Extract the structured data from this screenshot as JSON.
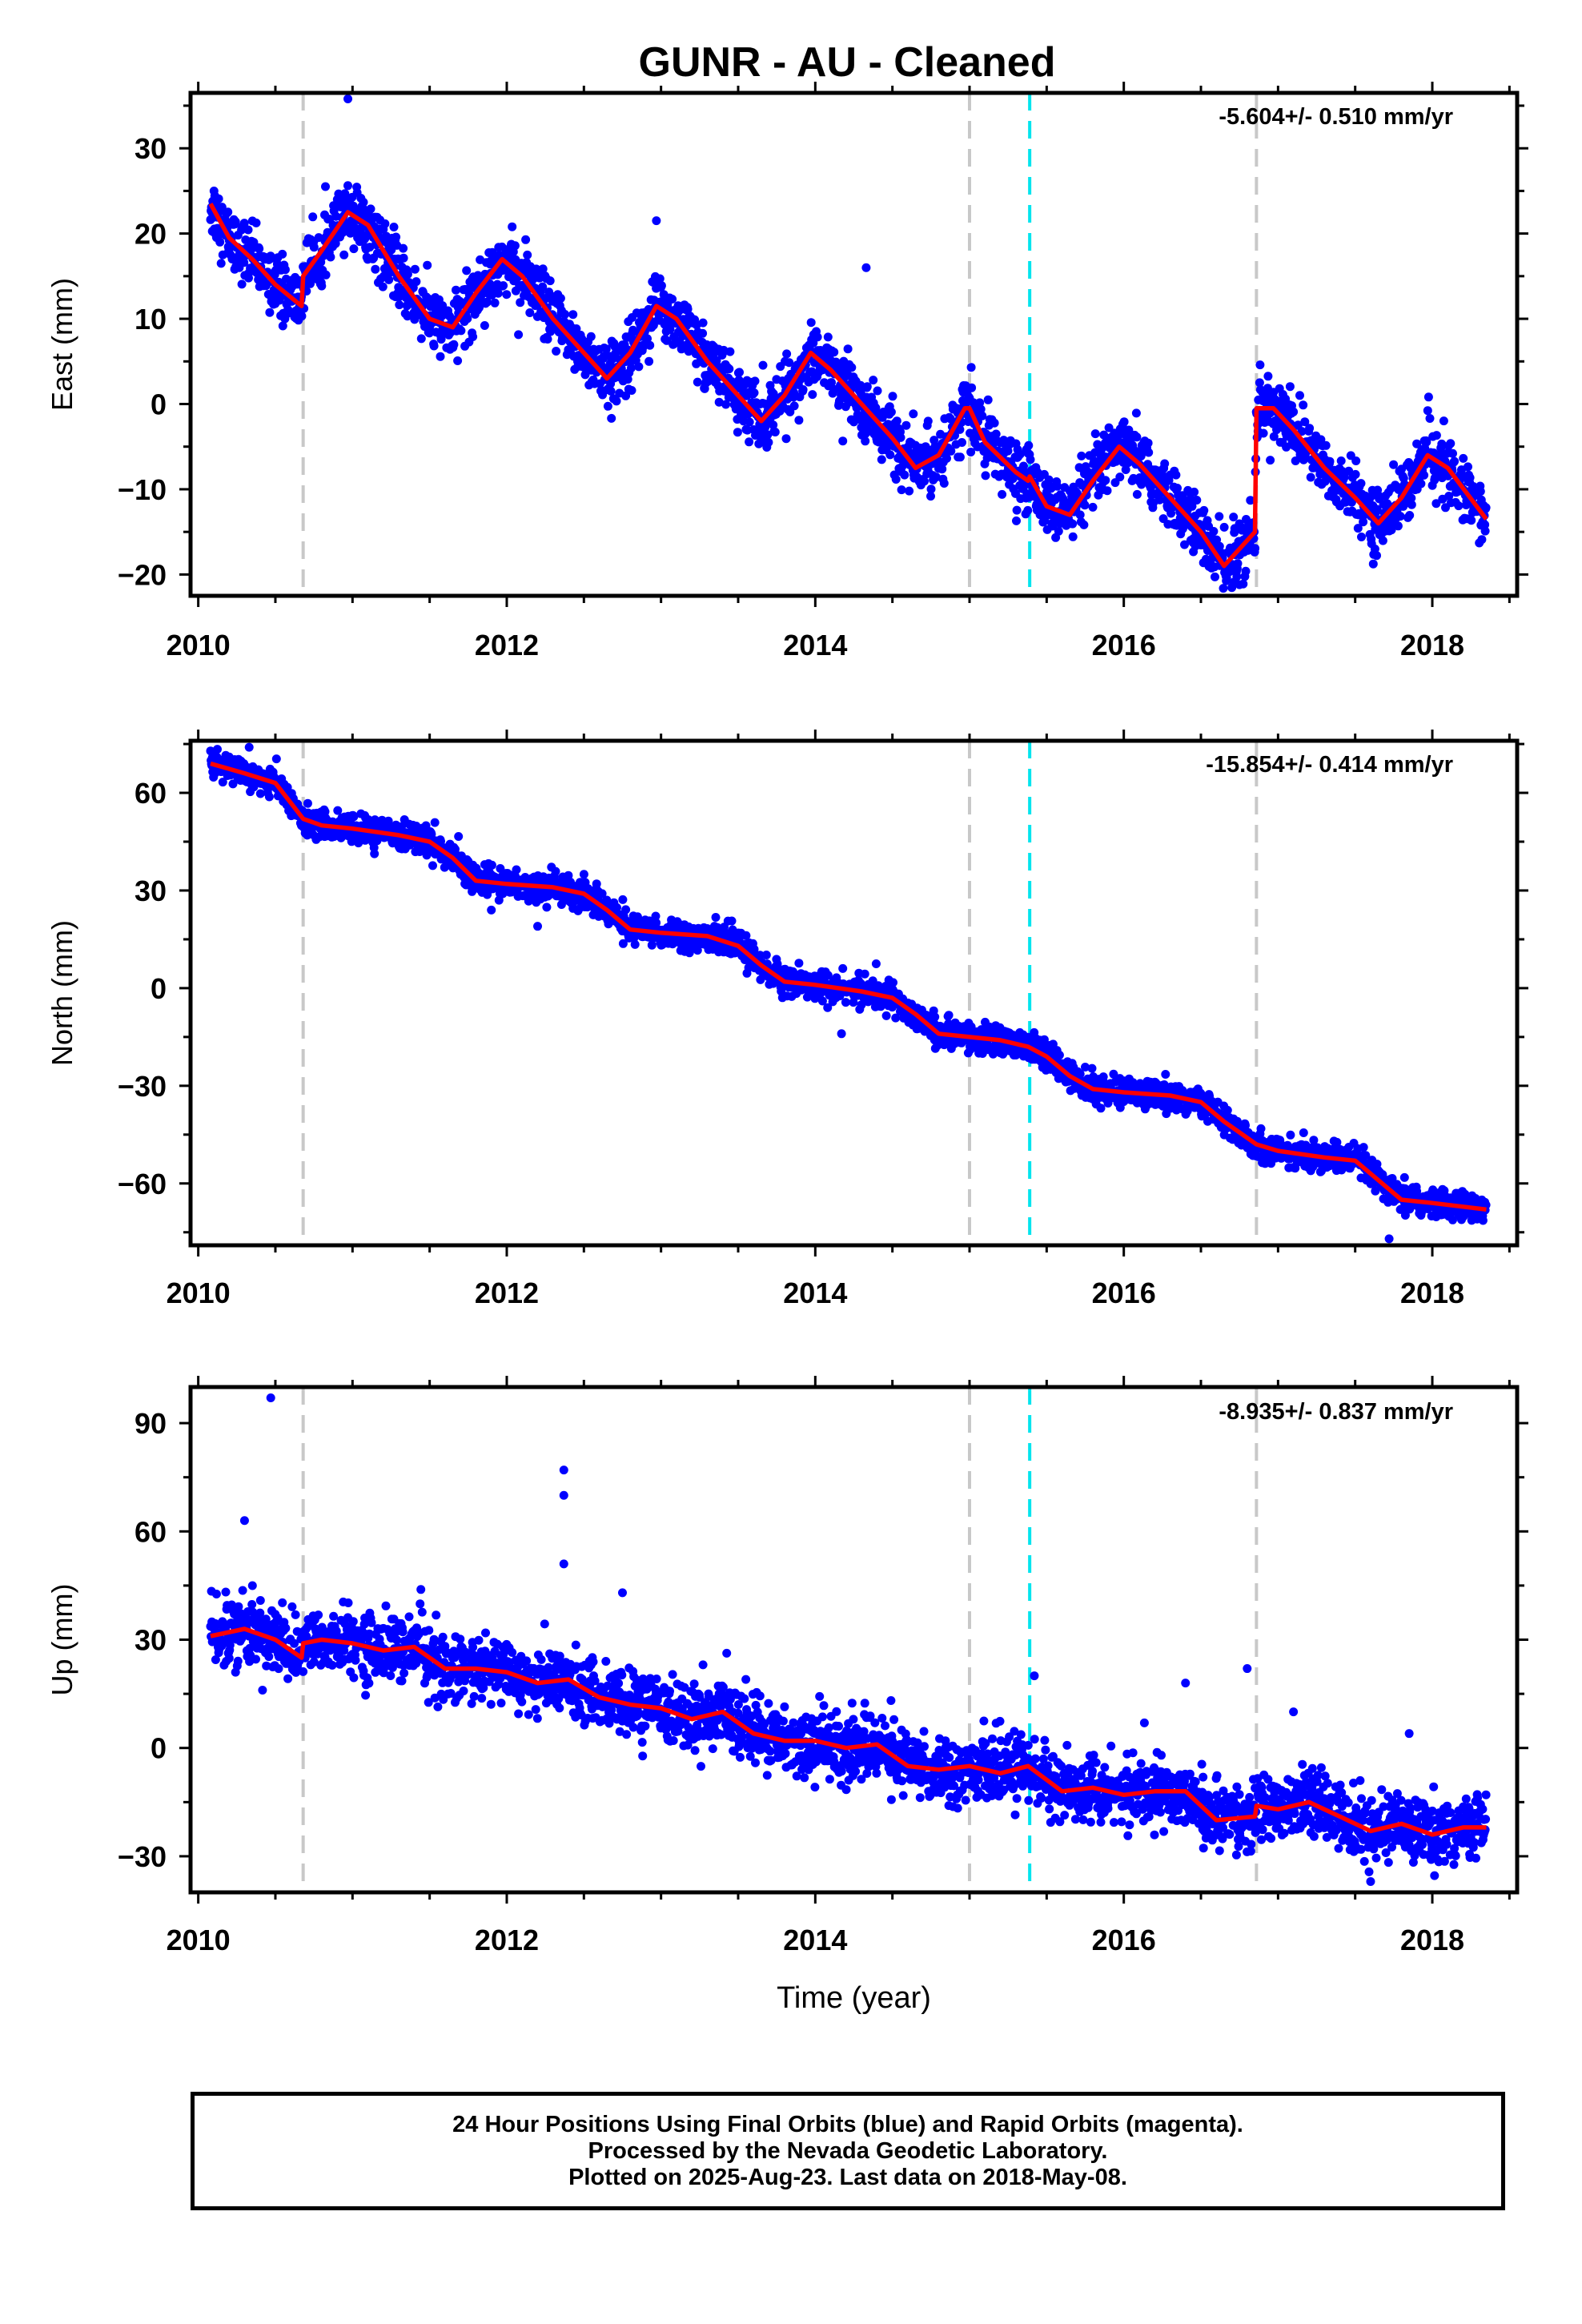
{
  "title": "GUNR  - AU - Cleaned",
  "chart_data": [
    {
      "type": "scatter",
      "panel": "east",
      "ylabel": "East (mm)",
      "xlabel": "",
      "rate_label": "-5.604+/- 0.510 mm/yr",
      "xlim": [
        2009.95,
        2018.55
      ],
      "ylim": [
        -22.5,
        36.5
      ],
      "yticks": [
        -20,
        -10,
        0,
        10,
        20,
        30
      ],
      "ytick_labels": [
        "−20",
        "−10",
        "0",
        "10",
        "20",
        "30"
      ],
      "xticks": [
        2010,
        2012,
        2014,
        2016,
        2018
      ],
      "xtick_labels": [
        "2010",
        "2012",
        "2014",
        "2016",
        "2018"
      ],
      "gray_dashed_lines": [
        2010.68,
        2015.0,
        2016.86
      ],
      "cyan_dashed_lines": [
        2015.39
      ],
      "trend_model": {
        "name": "model",
        "color": "#ff0000",
        "x": [
          2010.08,
          2010.2,
          2010.35,
          2010.5,
          2010.67,
          2010.68,
          2010.8,
          2010.97,
          2011.1,
          2011.3,
          2011.5,
          2011.65,
          2011.8,
          2011.97,
          2012.1,
          2012.3,
          2012.5,
          2012.65,
          2012.8,
          2012.97,
          2013.1,
          2013.3,
          2013.5,
          2013.65,
          2013.8,
          2013.97,
          2014.1,
          2014.3,
          2014.5,
          2014.65,
          2014.8,
          2014.97,
          2015.0,
          2015.1,
          2015.3,
          2015.38,
          2015.39,
          2015.5,
          2015.65,
          2015.8,
          2015.97,
          2016.1,
          2016.3,
          2016.5,
          2016.65,
          2016.85,
          2016.86,
          2016.97,
          2017.1,
          2017.3,
          2017.5,
          2017.65,
          2017.8,
          2017.97,
          2018.1,
          2018.35
        ],
        "y": [
          23.5,
          19.5,
          17,
          14,
          11.5,
          15,
          18,
          22.5,
          21,
          15,
          10,
          9,
          13,
          17,
          15,
          10,
          6,
          3,
          6,
          11.5,
          10,
          5,
          1,
          -2,
          1,
          6,
          4,
          0,
          -4,
          -7.5,
          -6,
          -0.5,
          -0.5,
          -4.5,
          -8,
          -9,
          -8.5,
          -12,
          -13,
          -9,
          -5,
          -7,
          -11,
          -15,
          -19,
          -15,
          -0.5,
          -0.5,
          -3,
          -7.5,
          -11,
          -14,
          -11,
          -6,
          -7.5,
          -13.5
        ]
      },
      "observations": {
        "name": "24 hour positions",
        "color": "#0000ff",
        "outliers": [
          [
            2010.97,
            35.8
          ],
          [
            2012.97,
            21.5
          ],
          [
            2014.33,
            16
          ],
          [
            2016.75,
            -21.2
          ]
        ]
      }
    },
    {
      "type": "scatter",
      "panel": "north",
      "ylabel": "North (mm)",
      "xlabel": "",
      "rate_label": "-15.854+/- 0.414 mm/yr",
      "xlim": [
        2009.95,
        2018.55
      ],
      "ylim": [
        -79,
        76
      ],
      "yticks": [
        -60,
        -30,
        0,
        30,
        60
      ],
      "ytick_labels": [
        "−60",
        "−30",
        "0",
        "30",
        "60"
      ],
      "xticks": [
        2010,
        2012,
        2014,
        2016,
        2018
      ],
      "xtick_labels": [
        "2010",
        "2012",
        "2014",
        "2016",
        "2018"
      ],
      "gray_dashed_lines": [
        2010.68,
        2015.0,
        2016.86
      ],
      "cyan_dashed_lines": [
        2015.39
      ],
      "trend_model": {
        "name": "model",
        "color": "#ff0000",
        "x": [
          2010.08,
          2010.3,
          2010.5,
          2010.68,
          2010.8,
          2011.0,
          2011.3,
          2011.5,
          2011.65,
          2011.8,
          2012.0,
          2012.3,
          2012.5,
          2012.65,
          2012.8,
          2013.0,
          2013.3,
          2013.5,
          2013.65,
          2013.8,
          2014.0,
          2014.3,
          2014.5,
          2014.65,
          2014.8,
          2015.0,
          2015.2,
          2015.38,
          2015.5,
          2015.65,
          2015.8,
          2016.0,
          2016.3,
          2016.5,
          2016.65,
          2016.86,
          2017.0,
          2017.3,
          2017.5,
          2017.65,
          2017.8,
          2018.0,
          2018.35
        ],
        "y": [
          69,
          66,
          63,
          52,
          50,
          49,
          47,
          45,
          40,
          33,
          32,
          31,
          29,
          24,
          18,
          17,
          16,
          13,
          7,
          2,
          1,
          -1,
          -3,
          -8,
          -14,
          -15,
          -16,
          -18,
          -21,
          -27,
          -31,
          -32,
          -33,
          -35,
          -41,
          -48,
          -50,
          -52,
          -53,
          -59,
          -65,
          -66,
          -68
        ]
      },
      "observations": {
        "name": "24 hour positions",
        "color": "#0000ff",
        "outliers": [
          [
            2010.33,
            74
          ],
          [
            2011.9,
            24
          ],
          [
            2012.2,
            19
          ],
          [
            2014.17,
            -14
          ],
          [
            2014.08,
            -6
          ],
          [
            2017.72,
            -77
          ]
        ]
      }
    },
    {
      "type": "scatter",
      "panel": "up",
      "ylabel": "Up (mm)",
      "xlabel": "Time (year)",
      "rate_label": "-8.935+/- 0.837 mm/yr",
      "xlim": [
        2009.95,
        2018.55
      ],
      "ylim": [
        -40,
        100
      ],
      "yticks": [
        -30,
        0,
        30,
        60,
        90
      ],
      "ytick_labels": [
        "−30",
        "0",
        "30",
        "60",
        "90"
      ],
      "xticks": [
        2010,
        2012,
        2014,
        2016,
        2018
      ],
      "xtick_labels": [
        "2010",
        "2012",
        "2014",
        "2016",
        "2018"
      ],
      "gray_dashed_lines": [
        2010.68,
        2015.0,
        2016.86
      ],
      "cyan_dashed_lines": [
        2015.39
      ],
      "trend_model": {
        "name": "model",
        "color": "#ff0000",
        "x": [
          2010.08,
          2010.3,
          2010.5,
          2010.67,
          2010.68,
          2010.8,
          2011.0,
          2011.2,
          2011.4,
          2011.6,
          2011.8,
          2012.0,
          2012.2,
          2012.4,
          2012.6,
          2012.8,
          2013.0,
          2013.2,
          2013.4,
          2013.6,
          2013.8,
          2014.0,
          2014.2,
          2014.4,
          2014.6,
          2014.8,
          2015.0,
          2015.2,
          2015.38,
          2015.6,
          2015.8,
          2016.0,
          2016.2,
          2016.4,
          2016.6,
          2016.85,
          2016.86,
          2017.0,
          2017.2,
          2017.4,
          2017.6,
          2017.8,
          2018.0,
          2018.2,
          2018.35
        ],
        "y": [
          31,
          33,
          30,
          25,
          29,
          30,
          29,
          27,
          28,
          22,
          22,
          21,
          18,
          19,
          14,
          12,
          11,
          8,
          10,
          4,
          2,
          2,
          0,
          1,
          -5,
          -6,
          -5,
          -7,
          -5,
          -12,
          -11,
          -13,
          -12,
          -12,
          -20,
          -19,
          -16,
          -17,
          -15,
          -19,
          -23,
          -21,
          -24,
          -22,
          -22
        ]
      },
      "observations": {
        "name": "24 hour positions",
        "color": "#0000ff",
        "outliers": [
          [
            2010.47,
            97
          ],
          [
            2010.3,
            63
          ],
          [
            2012.37,
            77
          ],
          [
            2012.37,
            70
          ],
          [
            2012.37,
            51
          ],
          [
            2012.75,
            43
          ],
          [
            2013.55,
            19
          ],
          [
            2015.42,
            20
          ],
          [
            2016.4,
            18
          ],
          [
            2016.8,
            22
          ],
          [
            2017.1,
            10
          ],
          [
            2017.85,
            4
          ],
          [
            2017.6,
            -37
          ]
        ]
      }
    }
  ],
  "caption": {
    "line1": "24 Hour Positions Using Final Orbits (blue) and Rapid Orbits (magenta).",
    "line2": "Processed by the Nevada Geodetic Laboratory.",
    "line3": "Plotted on 2025-Aug-23. Last data on 2018-May-08."
  }
}
